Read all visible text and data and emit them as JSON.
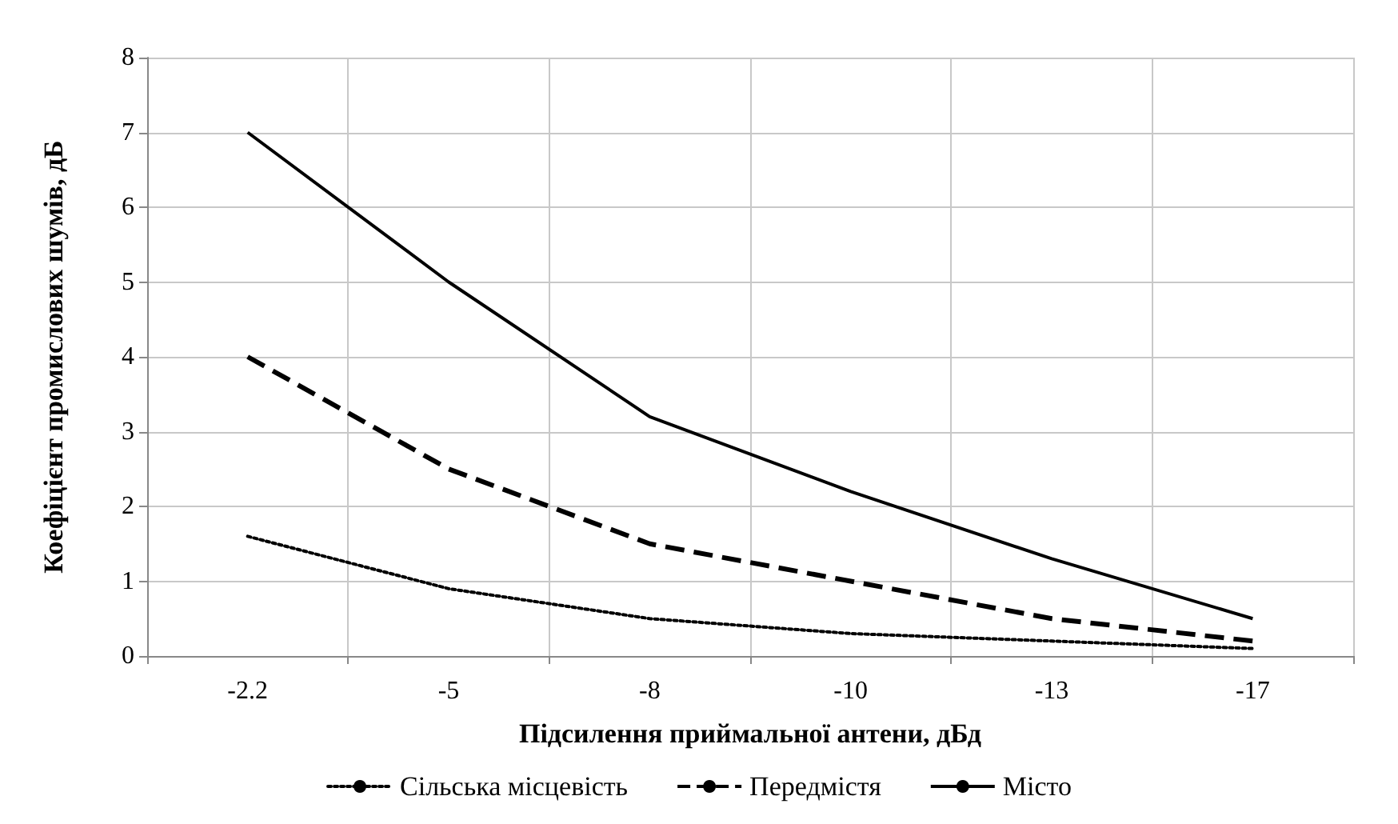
{
  "chart_data": {
    "type": "line",
    "xlabel": "Підсилення приймальної антени, дБд",
    "ylabel": "Коефіцієнт промислових шумів, дБ",
    "categories": [
      "-2.2",
      "-5",
      "-8",
      "-10",
      "-13",
      "-17"
    ],
    "series": [
      {
        "name": "Сільська місцевість",
        "color": "#000000",
        "line_style": "dotted",
        "values": [
          1.6,
          0.9,
          0.5,
          0.3,
          0.2,
          0.1
        ]
      },
      {
        "name": "Передмістя",
        "color": "#000000",
        "line_style": "dashed",
        "values": [
          4,
          2.5,
          1.5,
          1,
          0.5,
          0.2
        ]
      },
      {
        "name": "Місто",
        "color": "#000000",
        "line_style": "solid",
        "values": [
          7,
          5,
          3.2,
          2.2,
          1.3,
          0.5
        ]
      }
    ],
    "ylim": [
      0,
      8
    ],
    "yticks": [
      0,
      1,
      2,
      3,
      4,
      5,
      6,
      7,
      8
    ],
    "grid": true,
    "legend": "bottom",
    "marker": "none"
  }
}
